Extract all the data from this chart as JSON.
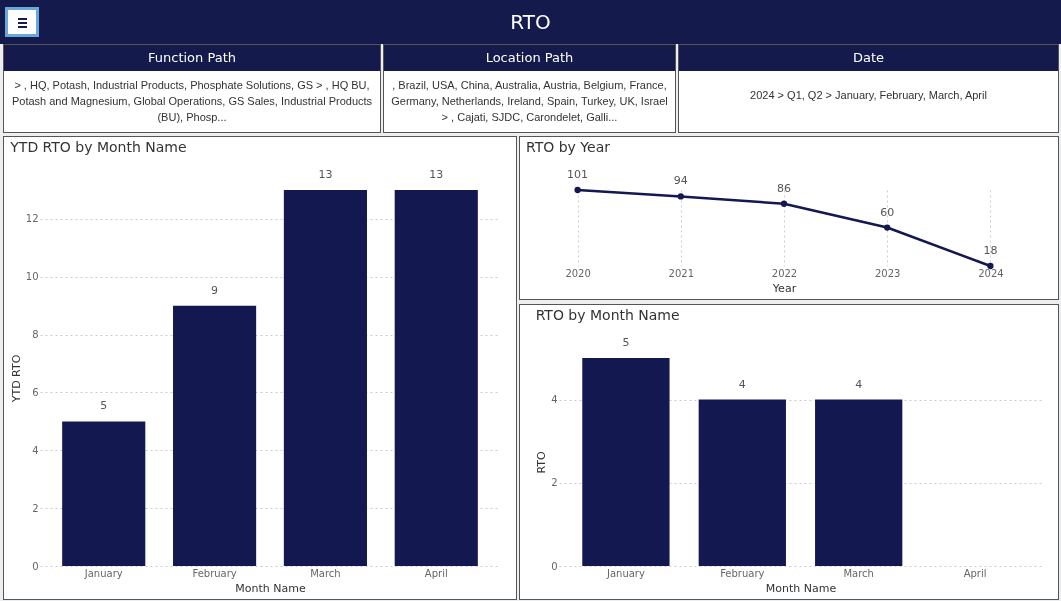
{
  "chart_data": [
    {
      "type": "other",
      "title": "RTO"
    },
    {
      "type": "other",
      "title": "Function Path",
      "annotations": [
        "> , HQ, Potash, Industrial Products, Phosphate Solutions, GS > , HQ BU, Potash and Magnesium, Global Operations, GS Sales, Industrial Products (BU), Phosp..."
      ]
    },
    {
      "type": "other",
      "title": "Location Path",
      "annotations": [
        ", Brazil, USA, China, Australia, Austria, Belgium, France, Germany, Netherlands, Ireland, Spain, Turkey, UK, Israel > , Cajati, SJDC, Carondelet, Galli..."
      ]
    },
    {
      "type": "other",
      "title": "Date",
      "annotations": [
        "2024 > Q1, Q2 > January, February, March, April"
      ]
    },
    {
      "type": "bar",
      "title": "YTD RTO by Month Name",
      "xlabel": "Month Name",
      "ylabel": "YTD RTO",
      "categories": [
        "January",
        "February",
        "March",
        "April"
      ],
      "values": [
        5,
        9,
        13,
        13
      ],
      "color": "#141850",
      "ylim": [
        0,
        13
      ],
      "yticks": [
        0,
        2,
        4,
        6,
        8,
        10,
        12
      ],
      "grid": "y",
      "data_labels": true
    },
    {
      "type": "line",
      "title": "RTO by Year",
      "xlabel": "Year",
      "categories": [
        "2020",
        "2021",
        "2022",
        "2023",
        "2024"
      ],
      "values": [
        101,
        94,
        86,
        60,
        18
      ],
      "color": "#141850",
      "marker": "circle",
      "grid": "x",
      "data_labels": true,
      "tick_labels": "x"
    },
    {
      "type": "bar",
      "title": "RTO by Month Name",
      "xlabel": "Month Name",
      "ylabel": "RTO",
      "categories": [
        "January",
        "February",
        "March",
        "April"
      ],
      "values": [
        5,
        4,
        4,
        null
      ],
      "color": "#141850",
      "ylim": [
        0,
        5
      ],
      "yticks": [
        0,
        2,
        4
      ],
      "grid": "y",
      "data_labels": true
    }
  ]
}
